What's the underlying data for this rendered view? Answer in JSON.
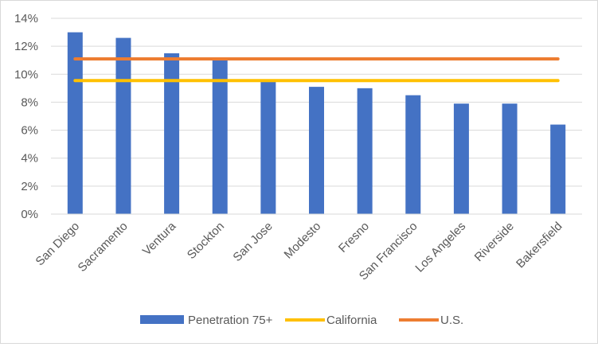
{
  "chart_data": {
    "type": "bar",
    "categories": [
      "San Diego",
      "Sacramento",
      "Ventura",
      "Stockton",
      "San Jose",
      "Modesto",
      "Fresno",
      "San Francisco",
      "Los Angeles",
      "Riverside",
      "Bakersfield"
    ],
    "series": [
      {
        "name": "Penetration 75+",
        "kind": "bar",
        "color": "#4472c4",
        "values": [
          13.0,
          12.6,
          11.5,
          11.1,
          9.5,
          9.1,
          9.0,
          8.5,
          7.9,
          7.9,
          6.4
        ]
      },
      {
        "name": "California",
        "kind": "line",
        "color": "#ffc000",
        "values": [
          9.55,
          9.55,
          9.55,
          9.55,
          9.55,
          9.55,
          9.55,
          9.55,
          9.55,
          9.55,
          9.55
        ]
      },
      {
        "name": "U.S.",
        "kind": "line",
        "color": "#ed7d31",
        "values": [
          11.1,
          11.1,
          11.1,
          11.1,
          11.1,
          11.1,
          11.1,
          11.1,
          11.1,
          11.1,
          11.1
        ]
      }
    ],
    "yticks": [
      "0%",
      "2%",
      "4%",
      "6%",
      "8%",
      "10%",
      "12%",
      "14%"
    ],
    "ylim": [
      0,
      14
    ],
    "grid": true,
    "legend_position": "bottom"
  }
}
